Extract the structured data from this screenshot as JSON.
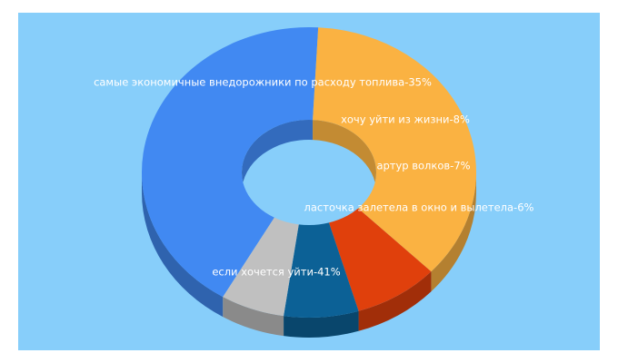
{
  "chart_data": {
    "type": "pie",
    "style": "3d-donut",
    "label_format": "{name}-{percent}%",
    "slices": [
      {
        "name": "если хочется уйти",
        "value": 41,
        "color": "#4189f2"
      },
      {
        "name": "самые экономичные внедорожники по расходу топлива",
        "value": 35,
        "color": "#fab242"
      },
      {
        "name": "хочу уйти из жизни",
        "value": 8,
        "color": "#e0400c"
      },
      {
        "name": "артур волков",
        "value": 7,
        "color": "#0c6196"
      },
      {
        "name": "ласточка залетела в окно и вылетела",
        "value": 6,
        "color": "#c0c0c0"
      }
    ],
    "legend": "none"
  }
}
